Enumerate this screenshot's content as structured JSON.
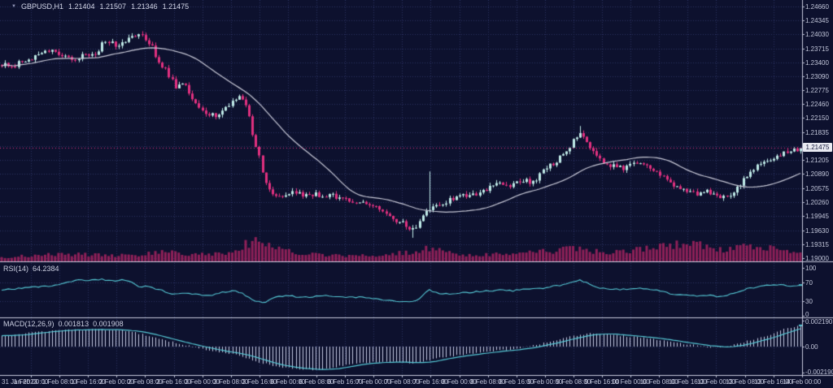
{
  "chart_header": {
    "symbol_timeframe": "GBPUSD,H1",
    "open": "1.21404",
    "high": "1.21507",
    "low": "1.21346",
    "close": "1.21475"
  },
  "panels": {
    "rsi": {
      "name": "RSI(14)",
      "value": "64.2384",
      "axis": [
        "100",
        "70",
        "30",
        "0"
      ]
    },
    "macd": {
      "name": "MACD(12,26,9)",
      "value_main": "0.001813",
      "value_signal": "0.001908",
      "axis": [
        "0.002190",
        "0.00",
        "-0.002190"
      ]
    }
  },
  "price_axis": {
    "labels": [
      "1.24660",
      "1.24345",
      "1.24030",
      "1.23715",
      "1.23400",
      "1.23090",
      "1.22775",
      "1.22460",
      "1.22150",
      "1.21835",
      "1.21520",
      "1.21205",
      "1.20890",
      "1.20575",
      "1.20260",
      "1.19945",
      "1.19630",
      "1.19315",
      "1.19000"
    ],
    "current": "1.21475"
  },
  "time_axis": {
    "labels": [
      "31 Jan 2023",
      "1 Feb 00:00",
      "1 Feb 08:00",
      "1 Feb 16:00",
      "2 Feb 00:00",
      "2 Feb 08:00",
      "2 Feb 16:00",
      "3 Feb 00:00",
      "3 Feb 08:00",
      "3 Feb 16:00",
      "6 Feb 00:00",
      "6 Feb 08:00",
      "6 Feb 16:00",
      "7 Feb 00:00",
      "7 Feb 08:00",
      "7 Feb 16:00",
      "8 Feb 00:00",
      "8 Feb 08:00",
      "8 Feb 16:00",
      "9 Feb 00:00",
      "9 Feb 08:00",
      "9 Feb 16:00",
      "10 Feb 00:00",
      "10 Feb 08:00",
      "10 Feb 16:00",
      "13 Feb 00:00",
      "13 Feb 08:00",
      "13 Feb 16:00",
      "14 Feb 00:00"
    ]
  },
  "colors": {
    "background": "#0d112e",
    "grid": "#2b3162",
    "bull": "#bfeae7",
    "bear": "#e0307f",
    "ma": "#c9cad8",
    "volume": "#8e2058",
    "rsi_line": "#56c9d6",
    "macd_line": "#56c9d6",
    "macd_hist": "#c6cbe4",
    "separator": "#c9ccde",
    "axis_text": "#c2c6da",
    "tag_bg": "#e9eaf2",
    "tag_text": "#13173a",
    "price_line": "#e0307f"
  },
  "chart_data": [
    {
      "type": "candlestick",
      "name": "GBPUSD H1",
      "title": "GBPUSD,H1 1.21404 1.21507 1.21346 1.21475",
      "ylim": [
        1.1893,
        1.248
      ],
      "n_candles": 240,
      "ma_period": 30,
      "anchors": [
        [
          0,
          1.2338
        ],
        [
          15,
          1.233
        ],
        [
          30,
          1.2346
        ],
        [
          45,
          1.2352
        ],
        [
          60,
          1.2369
        ],
        [
          75,
          1.2356
        ],
        [
          90,
          1.2347
        ],
        [
          105,
          1.2361
        ],
        [
          118,
          1.2353
        ],
        [
          128,
          1.2391
        ],
        [
          140,
          1.2379
        ],
        [
          152,
          1.2386
        ],
        [
          165,
          1.2396
        ],
        [
          175,
          1.2401
        ],
        [
          185,
          1.2381
        ],
        [
          195,
          1.2341
        ],
        [
          205,
          1.232
        ],
        [
          215,
          1.2286
        ],
        [
          225,
          1.2296
        ],
        [
          235,
          1.2258
        ],
        [
          245,
          1.2236
        ],
        [
          255,
          1.2226
        ],
        [
          265,
          1.2218
        ],
        [
          275,
          1.2231
        ],
        [
          285,
          1.2255
        ],
        [
          295,
          1.2261
        ],
        [
          303,
          1.2241
        ],
        [
          310,
          1.2181
        ],
        [
          318,
          1.2131
        ],
        [
          326,
          1.2066
        ],
        [
          335,
          1.2046
        ],
        [
          345,
          1.2041
        ],
        [
          360,
          1.2053
        ],
        [
          375,
          1.2039
        ],
        [
          390,
          1.2043
        ],
        [
          405,
          1.2041
        ],
        [
          420,
          1.2037
        ],
        [
          435,
          1.2029
        ],
        [
          450,
          1.2023
        ],
        [
          465,
          1.2011
        ],
        [
          480,
          1.1991
        ],
        [
          495,
          1.1979
        ],
        [
          508,
          1.1962
        ],
        [
          518,
          1.1986
        ],
        [
          526,
          1.2011
        ],
        [
          535,
          1.2019
        ],
        [
          550,
          1.2029
        ],
        [
          565,
          1.2039
        ],
        [
          580,
          1.2043
        ],
        [
          595,
          1.2051
        ],
        [
          610,
          1.2069
        ],
        [
          625,
          1.2063
        ],
        [
          640,
          1.2076
        ],
        [
          655,
          1.2069
        ],
        [
          670,
          1.2101
        ],
        [
          685,
          1.2119
        ],
        [
          700,
          1.2151
        ],
        [
          712,
          1.2186
        ],
        [
          722,
          1.2161
        ],
        [
          735,
          1.2121
        ],
        [
          750,
          1.2109
        ],
        [
          765,
          1.2101
        ],
        [
          780,
          1.2113
        ],
        [
          795,
          1.2109
        ],
        [
          810,
          1.2091
        ],
        [
          825,
          1.2066
        ],
        [
          840,
          1.2056
        ],
        [
          855,
          1.2046
        ],
        [
          870,
          1.2049
        ],
        [
          885,
          1.2036
        ],
        [
          897,
          1.2041
        ],
        [
          908,
          1.2061
        ],
        [
          918,
          1.2086
        ],
        [
          930,
          1.2106
        ],
        [
          945,
          1.2123
        ],
        [
          958,
          1.2133
        ],
        [
          970,
          1.2141
        ],
        [
          986,
          1.21475
        ]
      ],
      "volume_anchors": [
        [
          0,
          18
        ],
        [
          40,
          28
        ],
        [
          80,
          35
        ],
        [
          120,
          30
        ],
        [
          160,
          28
        ],
        [
          200,
          45
        ],
        [
          240,
          30
        ],
        [
          280,
          40
        ],
        [
          300,
          80
        ],
        [
          315,
          95
        ],
        [
          330,
          70
        ],
        [
          360,
          45
        ],
        [
          400,
          28
        ],
        [
          440,
          25
        ],
        [
          480,
          35
        ],
        [
          505,
          45
        ],
        [
          527,
          65
        ],
        [
          560,
          30
        ],
        [
          600,
          32
        ],
        [
          640,
          38
        ],
        [
          680,
          50
        ],
        [
          712,
          60
        ],
        [
          745,
          38
        ],
        [
          780,
          55
        ],
        [
          815,
          70
        ],
        [
          845,
          85
        ],
        [
          865,
          75
        ],
        [
          890,
          50
        ],
        [
          915,
          65
        ],
        [
          940,
          70
        ],
        [
          960,
          62
        ],
        [
          986,
          40
        ]
      ],
      "spikes": [
        {
          "x": 527,
          "high": 1.2095
        },
        {
          "x": 509,
          "low": 1.1946
        },
        {
          "x": 713,
          "high": 1.2197
        }
      ]
    },
    {
      "type": "line",
      "name": "RSI(14)",
      "ylim": [
        0,
        100
      ],
      "levels": [
        70,
        30
      ],
      "current": 64.2384,
      "anchors": [
        [
          0,
          54
        ],
        [
          30,
          58
        ],
        [
          60,
          62
        ],
        [
          85,
          70
        ],
        [
          95,
          76
        ],
        [
          110,
          74
        ],
        [
          125,
          76
        ],
        [
          140,
          73
        ],
        [
          155,
          75
        ],
        [
          170,
          62
        ],
        [
          185,
          60
        ],
        [
          200,
          52
        ],
        [
          215,
          45
        ],
        [
          230,
          47
        ],
        [
          245,
          44
        ],
        [
          260,
          43
        ],
        [
          275,
          50
        ],
        [
          290,
          52
        ],
        [
          300,
          45
        ],
        [
          312,
          32
        ],
        [
          325,
          28
        ],
        [
          340,
          40
        ],
        [
          355,
          42
        ],
        [
          370,
          38
        ],
        [
          385,
          40
        ],
        [
          400,
          42
        ],
        [
          415,
          40
        ],
        [
          430,
          38
        ],
        [
          445,
          40
        ],
        [
          460,
          35
        ],
        [
          475,
          32
        ],
        [
          490,
          30
        ],
        [
          505,
          28
        ],
        [
          515,
          35
        ],
        [
          527,
          55
        ],
        [
          540,
          45
        ],
        [
          555,
          46
        ],
        [
          570,
          48
        ],
        [
          585,
          50
        ],
        [
          600,
          52
        ],
        [
          615,
          54
        ],
        [
          630,
          52
        ],
        [
          645,
          55
        ],
        [
          660,
          56
        ],
        [
          675,
          60
        ],
        [
          690,
          64
        ],
        [
          700,
          70
        ],
        [
          712,
          75
        ],
        [
          722,
          68
        ],
        [
          735,
          58
        ],
        [
          750,
          56
        ],
        [
          765,
          55
        ],
        [
          780,
          58
        ],
        [
          795,
          57
        ],
        [
          810,
          52
        ],
        [
          825,
          46
        ],
        [
          840,
          44
        ],
        [
          855,
          42
        ],
        [
          870,
          43
        ],
        [
          885,
          40
        ],
        [
          897,
          44
        ],
        [
          908,
          50
        ],
        [
          918,
          56
        ],
        [
          930,
          60
        ],
        [
          945,
          64
        ],
        [
          958,
          66
        ],
        [
          970,
          62
        ],
        [
          986,
          64.24
        ]
      ]
    },
    {
      "type": "macd",
      "name": "MACD(12,26,9)",
      "ylim": [
        -0.00235,
        0.00235
      ],
      "macd_value": 0.001813,
      "signal_value": 0.001908,
      "anchors": [
        [
          0,
          0.0009
        ],
        [
          40,
          0.0012
        ],
        [
          80,
          0.0014
        ],
        [
          120,
          0.00145
        ],
        [
          160,
          0.0013
        ],
        [
          200,
          0.0006
        ],
        [
          230,
          0.0001
        ],
        [
          260,
          -0.0004
        ],
        [
          290,
          -0.0007
        ],
        [
          315,
          -0.0013
        ],
        [
          340,
          -0.0017
        ],
        [
          365,
          -0.0019
        ],
        [
          390,
          -0.002
        ],
        [
          415,
          -0.0017
        ],
        [
          440,
          -0.0014
        ],
        [
          465,
          -0.0013
        ],
        [
          490,
          -0.00135
        ],
        [
          510,
          -0.0014
        ],
        [
          530,
          -0.0011
        ],
        [
          555,
          -0.0008
        ],
        [
          580,
          -0.0006
        ],
        [
          605,
          -0.0004
        ],
        [
          630,
          -0.0002
        ],
        [
          655,
          0.0001
        ],
        [
          680,
          0.0005
        ],
        [
          705,
          0.0009
        ],
        [
          725,
          0.0011
        ],
        [
          745,
          0.00105
        ],
        [
          765,
          0.0009
        ],
        [
          785,
          0.0008
        ],
        [
          805,
          0.0006
        ],
        [
          825,
          0.0004
        ],
        [
          845,
          0.0002
        ],
        [
          865,
          0.0
        ],
        [
          885,
          -0.0001
        ],
        [
          905,
          0.0002
        ],
        [
          925,
          0.0006
        ],
        [
          945,
          0.001
        ],
        [
          965,
          0.0015
        ],
        [
          986,
          0.0019
        ]
      ]
    }
  ]
}
